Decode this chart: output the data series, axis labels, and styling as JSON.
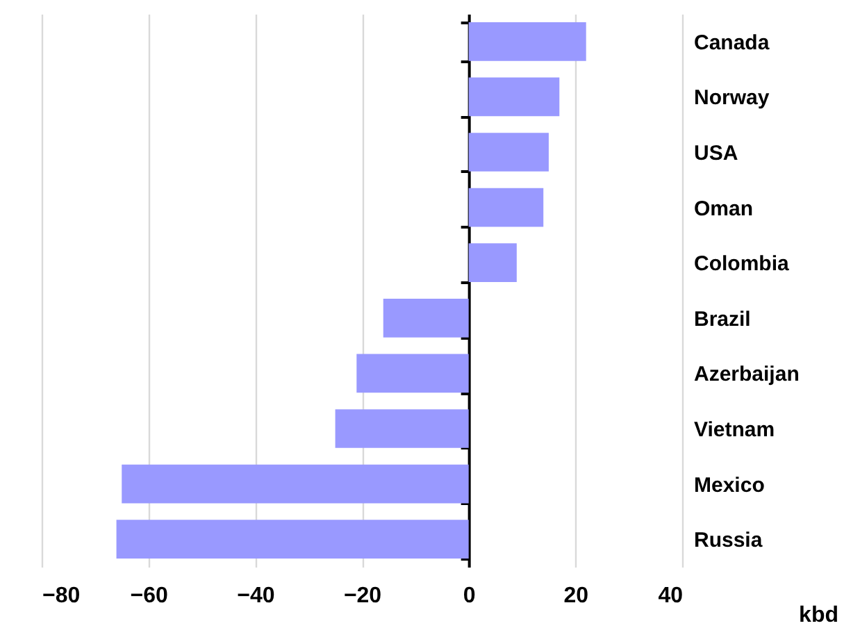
{
  "chart_data": {
    "type": "bar",
    "orientation": "horizontal",
    "xlabel": "kbd",
    "categories": [
      "Canada",
      "Norway",
      "USA",
      "Oman",
      "Colombia",
      "Brazil",
      "Azerbaijan",
      "Vietnam",
      "Mexico",
      "Russia"
    ],
    "values": [
      22,
      17,
      15,
      14,
      9,
      -16,
      -21,
      -25,
      -65,
      -66
    ],
    "color": "#9999ff",
    "xlim": [
      -80,
      40
    ],
    "xticks": [
      -80,
      -60,
      -40,
      -20,
      0,
      20,
      40
    ],
    "grid": "x"
  }
}
